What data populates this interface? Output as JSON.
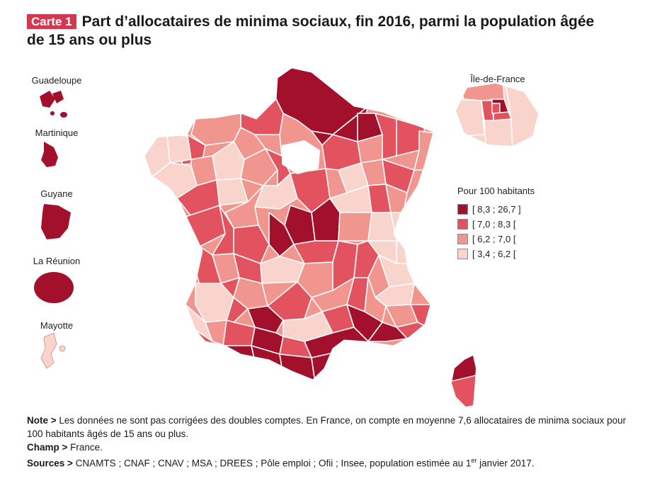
{
  "header": {
    "tag": "Carte 1",
    "title_line1": "Part d’allocataires de minima sociaux, fin 2016, parmi la population âgée",
    "title_line2": "de 15 ans ou plus"
  },
  "colors": {
    "class_1": "#a3102c",
    "class_2": "#e2525f",
    "class_3": "#f1958f",
    "class_4": "#f8d4cd",
    "stroke": "#ffffff",
    "tag_bg": "#d2384f"
  },
  "legend": {
    "title": "Pour 100 habitants",
    "items": [
      {
        "label": "[ 8,3 ; 26,7 ]",
        "class": 1,
        "color": "#a3102c"
      },
      {
        "label": "[ 7,0 ; 8,3 [",
        "class": 2,
        "color": "#e2525f"
      },
      {
        "label": "[ 6,2 ; 7,0 [",
        "class": 3,
        "color": "#f1958f"
      },
      {
        "label": "[ 3,4 ; 6,2 [",
        "class": 4,
        "color": "#f8d4cd"
      }
    ]
  },
  "overseas": [
    {
      "name": "Guadeloupe",
      "class": 1
    },
    {
      "name": "Martinique",
      "class": 1
    },
    {
      "name": "Guyane",
      "class": 1
    },
    {
      "name": "La Réunion",
      "class": 1
    },
    {
      "name": "Mayotte",
      "class": 4
    }
  ],
  "inset": {
    "name": "Île-de-France"
  },
  "notes": {
    "note_label": "Note >",
    "note_text": "Les données ne sont pas corrigées des doubles comptes. En France, on compte en moyenne 7,6 allocataires de minima sociaux pour 100 habitants âgés de 15 ans ou plus.",
    "champ_label": "Champ >",
    "champ_text": "France.",
    "sources_label": "Sources >",
    "sources_text": "CNAMTS ; CNAF ; CNAV ; MSA ; DREES ; Pôle emploi ; Ofii ; Insee, population estimée au 1",
    "sources_sup": "er",
    "sources_end": " janvier 2017."
  }
}
